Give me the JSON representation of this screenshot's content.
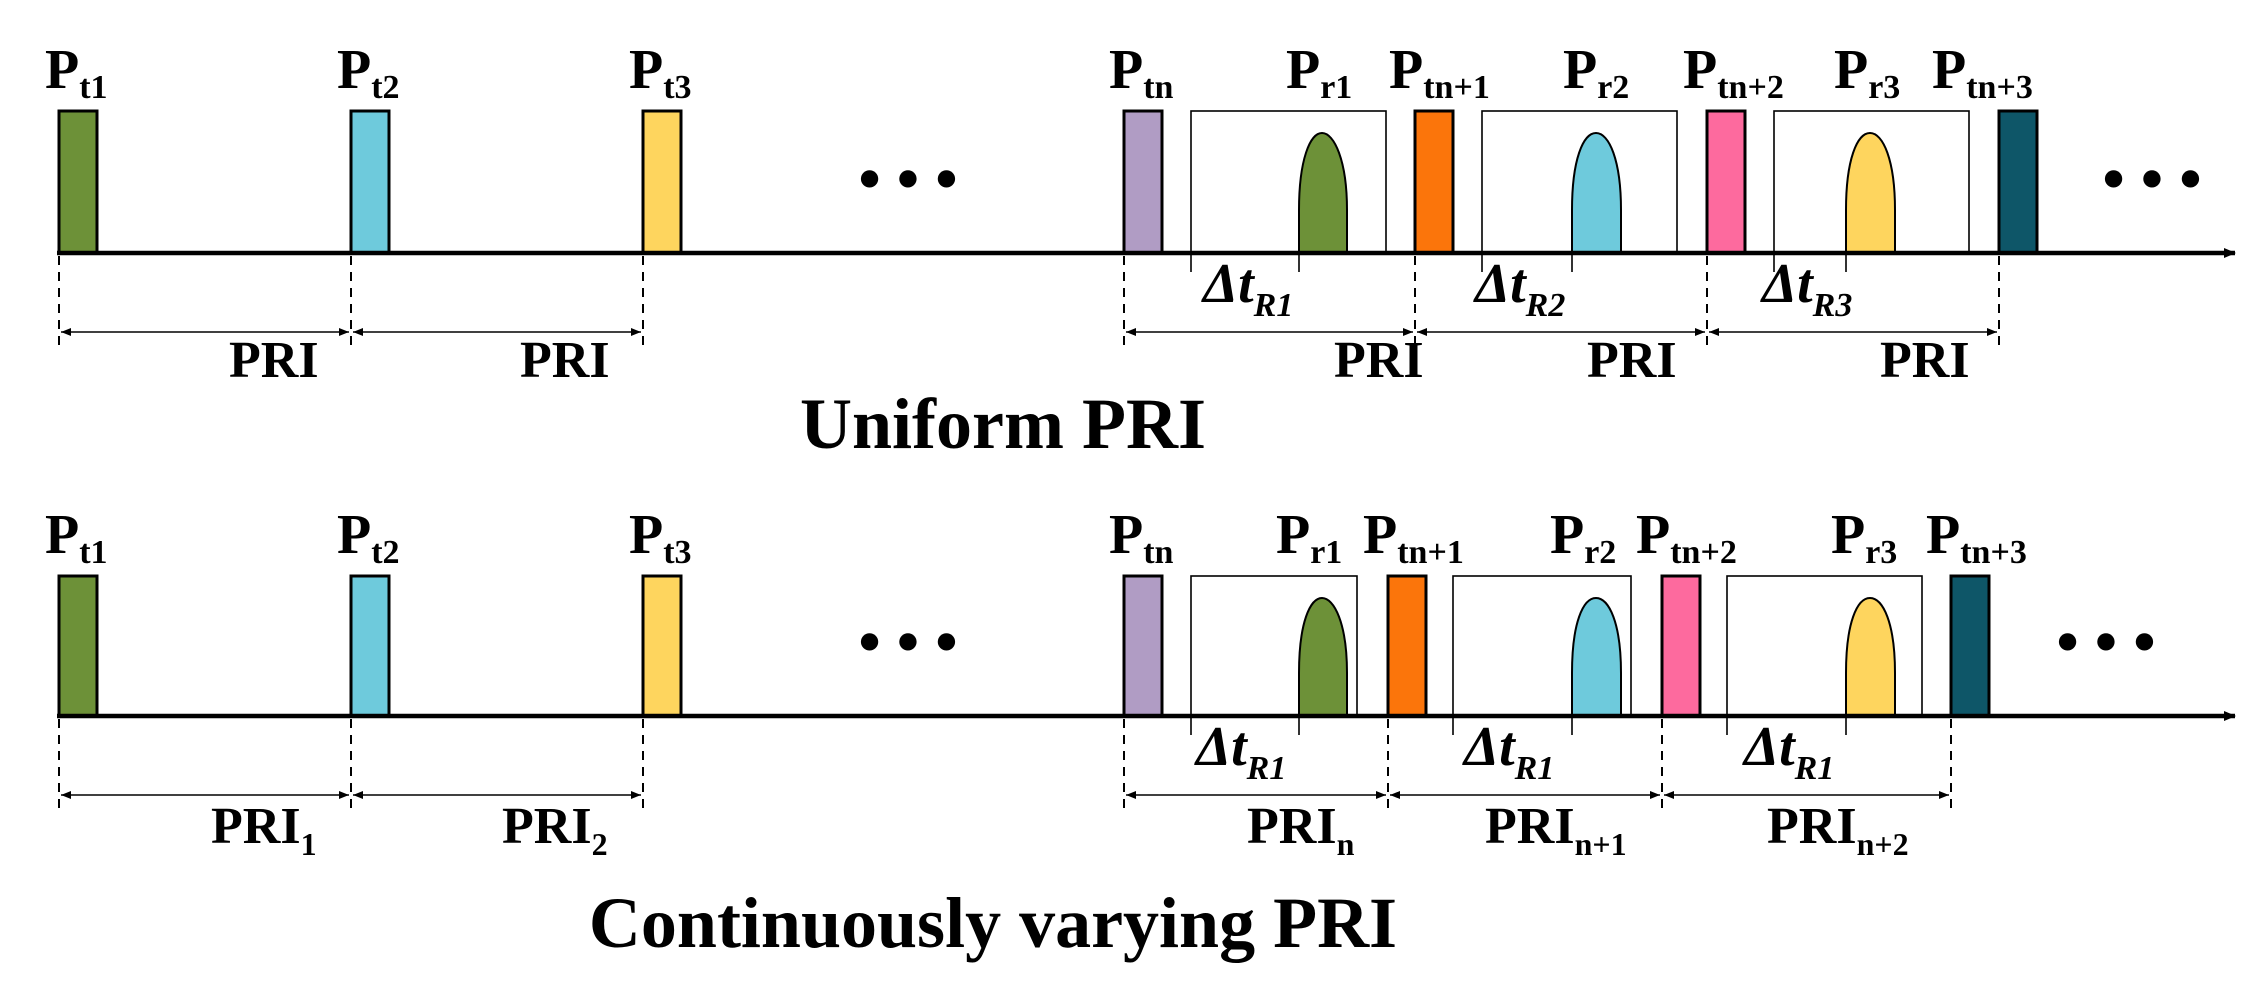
{
  "colors": {
    "green": "#6d9138",
    "cyan": "#6ecadc",
    "yellow": "#fed55e",
    "purple": "#b09cc4",
    "orange": "#fb750b",
    "pink": "#fd6a9e",
    "teal": "#0e5668"
  },
  "ellipsis": "•  •  •",
  "uniform": {
    "title": "Uniform PRI",
    "transmit_labels": [
      {
        "main": "P",
        "sub": "t1"
      },
      {
        "main": "P",
        "sub": "t2"
      },
      {
        "main": "P",
        "sub": "t3"
      },
      {
        "main": "P",
        "sub": "tn"
      },
      {
        "main": "P",
        "sub": "tn+1"
      },
      {
        "main": "P",
        "sub": "tn+2"
      },
      {
        "main": "P",
        "sub": "tn+3"
      }
    ],
    "receive_labels": [
      {
        "main": "P",
        "sub": "r1"
      },
      {
        "main": "P",
        "sub": "r2"
      },
      {
        "main": "P",
        "sub": "r3"
      }
    ],
    "delta_labels": [
      {
        "main": "Δt",
        "sub": "R1"
      },
      {
        "main": "Δt",
        "sub": "R2"
      },
      {
        "main": "Δt",
        "sub": "R3"
      }
    ],
    "pri_labels": [
      {
        "main": "PRI",
        "sub": ""
      },
      {
        "main": "PRI",
        "sub": ""
      },
      {
        "main": "PRI",
        "sub": ""
      },
      {
        "main": "PRI",
        "sub": ""
      },
      {
        "main": "PRI",
        "sub": ""
      }
    ]
  },
  "varying": {
    "title": "Continuously varying PRI",
    "transmit_labels": [
      {
        "main": "P",
        "sub": "t1"
      },
      {
        "main": "P",
        "sub": "t2"
      },
      {
        "main": "P",
        "sub": "t3"
      },
      {
        "main": "P",
        "sub": "tn"
      },
      {
        "main": "P",
        "sub": "tn+1"
      },
      {
        "main": "P",
        "sub": "tn+2"
      },
      {
        "main": "P",
        "sub": "tn+3"
      }
    ],
    "receive_labels": [
      {
        "main": "P",
        "sub": "r1"
      },
      {
        "main": "P",
        "sub": "r2"
      },
      {
        "main": "P",
        "sub": "r3"
      }
    ],
    "delta_labels": [
      {
        "main": "Δt",
        "sub": "R1"
      },
      {
        "main": "Δt",
        "sub": "R1"
      },
      {
        "main": "Δt",
        "sub": "R1"
      }
    ],
    "pri_labels": [
      {
        "main": "PRI",
        "sub": "1"
      },
      {
        "main": "PRI",
        "sub": "2"
      },
      {
        "main": "PRI",
        "sub": "n"
      },
      {
        "main": "PRI",
        "sub": "n+1"
      },
      {
        "main": "PRI",
        "sub": "n+2"
      }
    ]
  }
}
